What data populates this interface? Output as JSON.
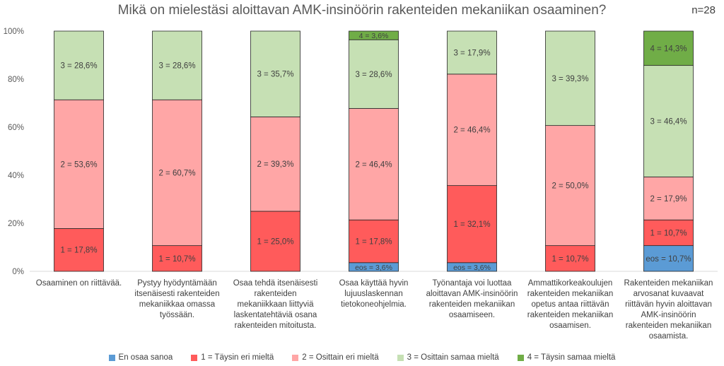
{
  "title": "Mikä on mielestäsi aloittavan AMK-insinöörin rakenteiden mekaniikan osaaminen?",
  "n_label": "n=28",
  "chart_data": {
    "type": "bar",
    "stacked": true,
    "percent": true,
    "ylim": [
      0,
      100
    ],
    "y_ticks": [
      "0%",
      "20%",
      "40%",
      "60%",
      "80%",
      "100%"
    ],
    "categories": [
      [
        "Osaaminen on riittävää."
      ],
      [
        "Pystyy hyödyntämään",
        "itsenäisesti rakenteiden",
        "mekaniikkaa omassa",
        "työssään."
      ],
      [
        "Osaa tehdä itsenäisesti",
        "rakenteiden",
        "mekaniikkaan liittyviä",
        "laskentatehtäviä osana",
        "rakenteiden mitoitusta."
      ],
      [
        "Osaa käyttää hyvin",
        "lujuuslaskennan",
        "tietokoneohjelmia."
      ],
      [
        "Työnantaja voi luottaa",
        "aloittavan AMK-insinöörin",
        "rakenteiden mekaniikan",
        "osaamiseen."
      ],
      [
        "Ammattikorkeakoulujen",
        "rakenteiden mekaniikan",
        "opetus antaa riittävän",
        "rakenteiden mekaniikan",
        "osaamisen."
      ],
      [
        "Rakenteiden mekaniikan",
        "arvosanat kuvaavat",
        "riittävän hyvin aloittavan",
        "AMK-insinöörin",
        "rakenteiden mekaniikan",
        "osaamista."
      ]
    ],
    "series": [
      {
        "name": "En osaa sanoa",
        "color": "#5b9bd5",
        "values": [
          0,
          0,
          0,
          3.6,
          3.6,
          0,
          10.7
        ],
        "labels": [
          "",
          "",
          "",
          "eos = 3,6%",
          "eos = 3,6%",
          "",
          "eos = 10,7%"
        ]
      },
      {
        "name": "1 = Täysin eri mieltä",
        "color": "#ff5b5b",
        "values": [
          17.8,
          10.7,
          25.0,
          17.8,
          32.1,
          10.7,
          10.7
        ],
        "labels": [
          "1 = 17,8%",
          "1 = 10,7%",
          "1 = 25,0%",
          "1 = 17,8%",
          "1 = 32,1%",
          "1 = 10,7%",
          "1 = 10,7%"
        ]
      },
      {
        "name": "2 = Osittain eri mieltä",
        "color": "#ffa6a6",
        "values": [
          53.6,
          60.7,
          39.3,
          46.4,
          46.4,
          50.0,
          17.9
        ],
        "labels": [
          "2 = 53,6%",
          "2 = 60,7%",
          "2 = 39,3%",
          "2 = 46,4%",
          "2 = 46,4%",
          "2 = 50,0%",
          "2 = 17,9%"
        ]
      },
      {
        "name": "3 = Osittain samaa mieltä",
        "color": "#c6e0b4",
        "values": [
          28.6,
          28.6,
          35.7,
          28.6,
          17.9,
          39.3,
          46.4
        ],
        "labels": [
          "3 = 28,6%",
          "3 = 28,6%",
          "3 = 35,7%",
          "3 = 28,6%",
          "3 = 17,9%",
          "3 = 39,3%",
          "3 = 46,4%"
        ]
      },
      {
        "name": "4 = Täysin samaa mieltä",
        "color": "#70ad47",
        "values": [
          0,
          0,
          0,
          3.6,
          0,
          0,
          14.3
        ],
        "labels": [
          "",
          "",
          "",
          "4 = 3,6%",
          "",
          "",
          "4 = 14,3%"
        ]
      }
    ],
    "grid": false,
    "legend_position": "bottom"
  }
}
